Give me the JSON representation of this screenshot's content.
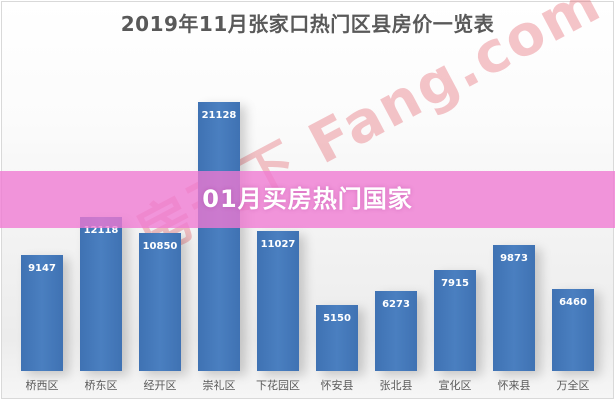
{
  "chart_data": {
    "type": "bar",
    "title": "2019年11月张家口热门区县房价一览表",
    "xlabel": "",
    "ylabel": "",
    "ylim": [
      0,
      22000
    ],
    "grid": false,
    "legend": "none",
    "categories": [
      "桥西区",
      "桥东区",
      "经开区",
      "崇礼区",
      "下花园区",
      "怀安县",
      "张北县",
      "宣化区",
      "怀来县",
      "万全区"
    ],
    "values": [
      9147,
      12118,
      10850,
      21128,
      11027,
      5150,
      6273,
      7915,
      9873,
      6460
    ],
    "value_labels": [
      "9147",
      "12118",
      "10850",
      "21128",
      "11027",
      "5150",
      "6273",
      "7915",
      "9873",
      "6460"
    ],
    "bar_color": "#4472c4"
  },
  "overlay": {
    "banner_text": "01月买房热门国家",
    "banner_color": "#f07cd2",
    "watermark_text": "房天下 Fang.com"
  }
}
